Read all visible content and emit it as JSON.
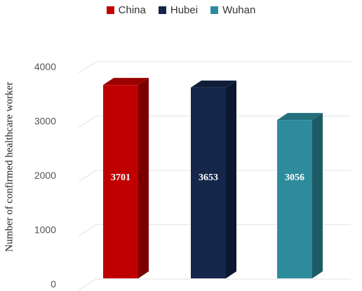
{
  "chart_data": {
    "type": "bar",
    "categories": [
      "China",
      "Hubei",
      "Wuhan"
    ],
    "values": [
      3701,
      3653,
      3056
    ],
    "data_labels": [
      "3701",
      "3653",
      "3056"
    ],
    "colors": [
      "#c00000",
      "#14264a",
      "#2e8b9c"
    ],
    "side_colors": [
      "#7a0000",
      "#0b1730",
      "#1c5b66"
    ],
    "top_colors": [
      "#9a0000",
      "#0f1d39",
      "#236f7c"
    ],
    "ylabel": "Number of confirmed healthcare worker",
    "xlabel": "",
    "ylim": [
      0,
      4000
    ],
    "yticks": [
      "0",
      "1000",
      "2000",
      "3000",
      "4000"
    ],
    "grid": true,
    "legend": {
      "position": "top-center",
      "entries": [
        "China",
        "Hubei",
        "Wuhan"
      ]
    },
    "style": "3d-column"
  }
}
